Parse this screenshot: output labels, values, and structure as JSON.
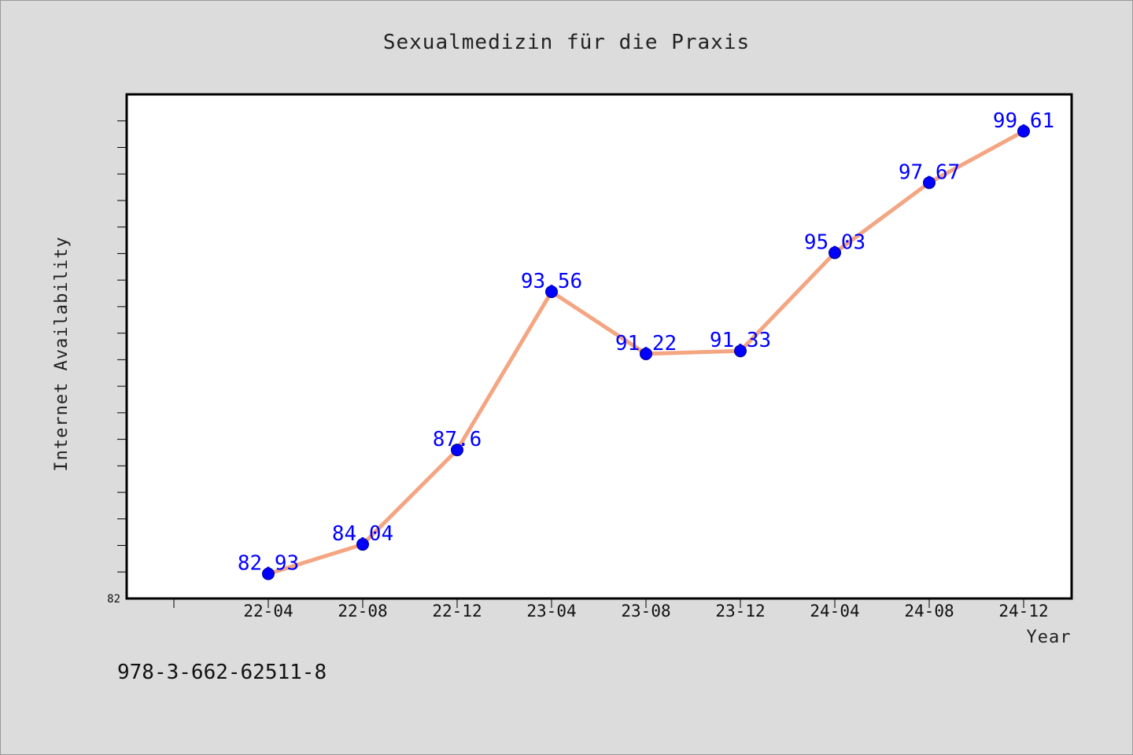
{
  "chart_data": {
    "type": "line",
    "title": "Sexualmedizin für die Praxis",
    "xlabel": "Year",
    "ylabel": "Internet Availability",
    "categories": [
      "22-04",
      "22-08",
      "22-12",
      "23-04",
      "23-08",
      "23-12",
      "24-04",
      "24-08",
      "24-12"
    ],
    "values": [
      82.93,
      84.04,
      87.6,
      93.56,
      91.22,
      91.33,
      95.03,
      97.67,
      99.61
    ],
    "data_labels": [
      "82.93",
      "84.04",
      "87.6",
      "93.56",
      "91.22",
      "91.33",
      "95.03",
      "97.67",
      "99.61"
    ],
    "ylim": [
      82,
      101
    ],
    "y_tick_labels": [
      "82"
    ],
    "grid": false,
    "legend": "none"
  },
  "footer": {
    "isbn": "978-3-662-62511-8"
  },
  "colors": {
    "background": "#dcdcdc",
    "plot_background": "#ffffff",
    "line": "#f4a582",
    "marker": "#0000ff",
    "data_label": "#0000ff"
  }
}
